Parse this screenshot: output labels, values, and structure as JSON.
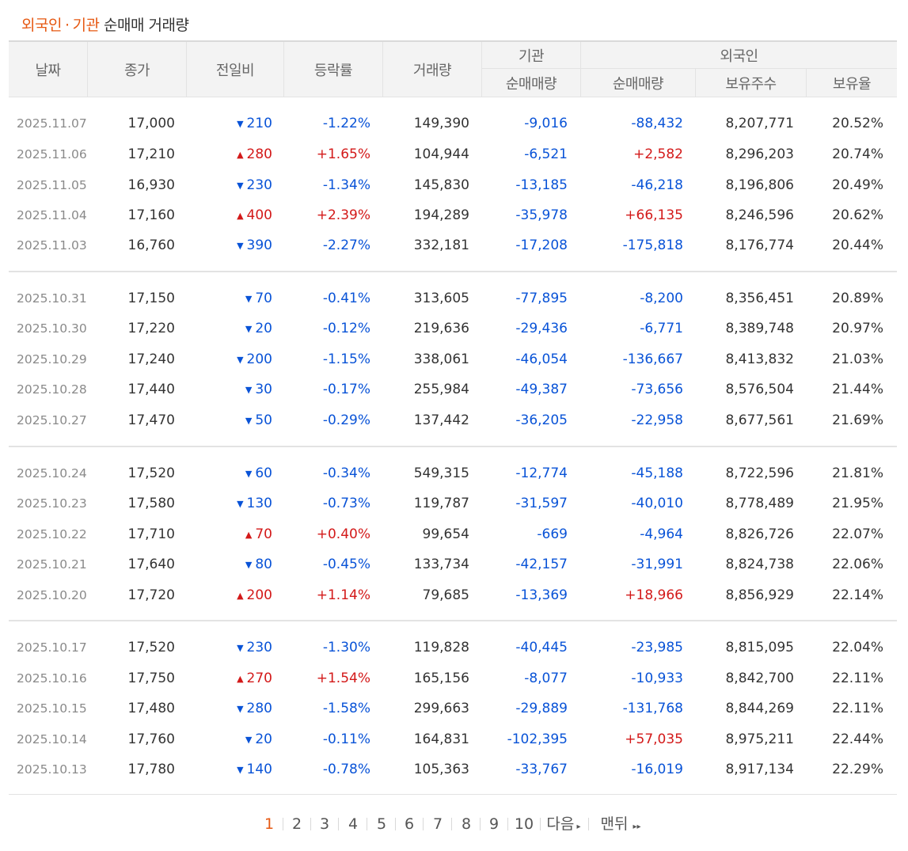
{
  "title": {
    "part1": "외국인",
    "separator": "·",
    "part2": "기관",
    "part3": "순매매 거래량"
  },
  "header": {
    "date": "날짜",
    "close": "종가",
    "change": "전일비",
    "rate": "등락률",
    "volume": "거래량",
    "institution": "기관",
    "institution_net": "순매매량",
    "foreign": "외국인",
    "foreign_net": "순매매량",
    "foreign_shares": "보유주수",
    "foreign_ratio": "보유율"
  },
  "colors": {
    "up": "#d31919",
    "down": "#0953d7",
    "accent": "#e65812"
  },
  "rows": [
    {
      "date": "2025.11.07",
      "close": "17,000",
      "dir": "down",
      "chg": "210",
      "rate": "-1.22%",
      "vol": "149,390",
      "inst": "-9,016",
      "frg": "-88,432",
      "shr": "8,207,771",
      "ratio": "20.52%"
    },
    {
      "date": "2025.11.06",
      "close": "17,210",
      "dir": "up",
      "chg": "280",
      "rate": "+1.65%",
      "vol": "104,944",
      "inst": "-6,521",
      "frg": "+2,582",
      "shr": "8,296,203",
      "ratio": "20.74%"
    },
    {
      "date": "2025.11.05",
      "close": "16,930",
      "dir": "down",
      "chg": "230",
      "rate": "-1.34%",
      "vol": "145,830",
      "inst": "-13,185",
      "frg": "-46,218",
      "shr": "8,196,806",
      "ratio": "20.49%"
    },
    {
      "date": "2025.11.04",
      "close": "17,160",
      "dir": "up",
      "chg": "400",
      "rate": "+2.39%",
      "vol": "194,289",
      "inst": "-35,978",
      "frg": "+66,135",
      "shr": "8,246,596",
      "ratio": "20.62%"
    },
    {
      "date": "2025.11.03",
      "close": "16,760",
      "dir": "down",
      "chg": "390",
      "rate": "-2.27%",
      "vol": "332,181",
      "inst": "-17,208",
      "frg": "-175,818",
      "shr": "8,176,774",
      "ratio": "20.44%"
    },
    {
      "date": "2025.10.31",
      "close": "17,150",
      "dir": "down",
      "chg": "70",
      "rate": "-0.41%",
      "vol": "313,605",
      "inst": "-77,895",
      "frg": "-8,200",
      "shr": "8,356,451",
      "ratio": "20.89%"
    },
    {
      "date": "2025.10.30",
      "close": "17,220",
      "dir": "down",
      "chg": "20",
      "rate": "-0.12%",
      "vol": "219,636",
      "inst": "-29,436",
      "frg": "-6,771",
      "shr": "8,389,748",
      "ratio": "20.97%"
    },
    {
      "date": "2025.10.29",
      "close": "17,240",
      "dir": "down",
      "chg": "200",
      "rate": "-1.15%",
      "vol": "338,061",
      "inst": "-46,054",
      "frg": "-136,667",
      "shr": "8,413,832",
      "ratio": "21.03%"
    },
    {
      "date": "2025.10.28",
      "close": "17,440",
      "dir": "down",
      "chg": "30",
      "rate": "-0.17%",
      "vol": "255,984",
      "inst": "-49,387",
      "frg": "-73,656",
      "shr": "8,576,504",
      "ratio": "21.44%"
    },
    {
      "date": "2025.10.27",
      "close": "17,470",
      "dir": "down",
      "chg": "50",
      "rate": "-0.29%",
      "vol": "137,442",
      "inst": "-36,205",
      "frg": "-22,958",
      "shr": "8,677,561",
      "ratio": "21.69%"
    },
    {
      "date": "2025.10.24",
      "close": "17,520",
      "dir": "down",
      "chg": "60",
      "rate": "-0.34%",
      "vol": "549,315",
      "inst": "-12,774",
      "frg": "-45,188",
      "shr": "8,722,596",
      "ratio": "21.81%"
    },
    {
      "date": "2025.10.23",
      "close": "17,580",
      "dir": "down",
      "chg": "130",
      "rate": "-0.73%",
      "vol": "119,787",
      "inst": "-31,597",
      "frg": "-40,010",
      "shr": "8,778,489",
      "ratio": "21.95%"
    },
    {
      "date": "2025.10.22",
      "close": "17,710",
      "dir": "up",
      "chg": "70",
      "rate": "+0.40%",
      "vol": "99,654",
      "inst": "-669",
      "frg": "-4,964",
      "shr": "8,826,726",
      "ratio": "22.07%"
    },
    {
      "date": "2025.10.21",
      "close": "17,640",
      "dir": "down",
      "chg": "80",
      "rate": "-0.45%",
      "vol": "133,734",
      "inst": "-42,157",
      "frg": "-31,991",
      "shr": "8,824,738",
      "ratio": "22.06%"
    },
    {
      "date": "2025.10.20",
      "close": "17,720",
      "dir": "up",
      "chg": "200",
      "rate": "+1.14%",
      "vol": "79,685",
      "inst": "-13,369",
      "frg": "+18,966",
      "shr": "8,856,929",
      "ratio": "22.14%"
    },
    {
      "date": "2025.10.17",
      "close": "17,520",
      "dir": "down",
      "chg": "230",
      "rate": "-1.30%",
      "vol": "119,828",
      "inst": "-40,445",
      "frg": "-23,985",
      "shr": "8,815,095",
      "ratio": "22.04%"
    },
    {
      "date": "2025.10.16",
      "close": "17,750",
      "dir": "up",
      "chg": "270",
      "rate": "+1.54%",
      "vol": "165,156",
      "inst": "-8,077",
      "frg": "-10,933",
      "shr": "8,842,700",
      "ratio": "22.11%"
    },
    {
      "date": "2025.10.15",
      "close": "17,480",
      "dir": "down",
      "chg": "280",
      "rate": "-1.58%",
      "vol": "299,663",
      "inst": "-29,889",
      "frg": "-131,768",
      "shr": "8,844,269",
      "ratio": "22.11%"
    },
    {
      "date": "2025.10.14",
      "close": "17,760",
      "dir": "down",
      "chg": "20",
      "rate": "-0.11%",
      "vol": "164,831",
      "inst": "-102,395",
      "frg": "+57,035",
      "shr": "8,975,211",
      "ratio": "22.44%"
    },
    {
      "date": "2025.10.13",
      "close": "17,780",
      "dir": "down",
      "chg": "140",
      "rate": "-0.78%",
      "vol": "105,363",
      "inst": "-33,767",
      "frg": "-16,019",
      "shr": "8,917,134",
      "ratio": "22.29%"
    }
  ],
  "pagination": {
    "pages": [
      "1",
      "2",
      "3",
      "4",
      "5",
      "6",
      "7",
      "8",
      "9",
      "10"
    ],
    "current": "1",
    "next_label": "다음",
    "last_label": "맨뒤"
  }
}
